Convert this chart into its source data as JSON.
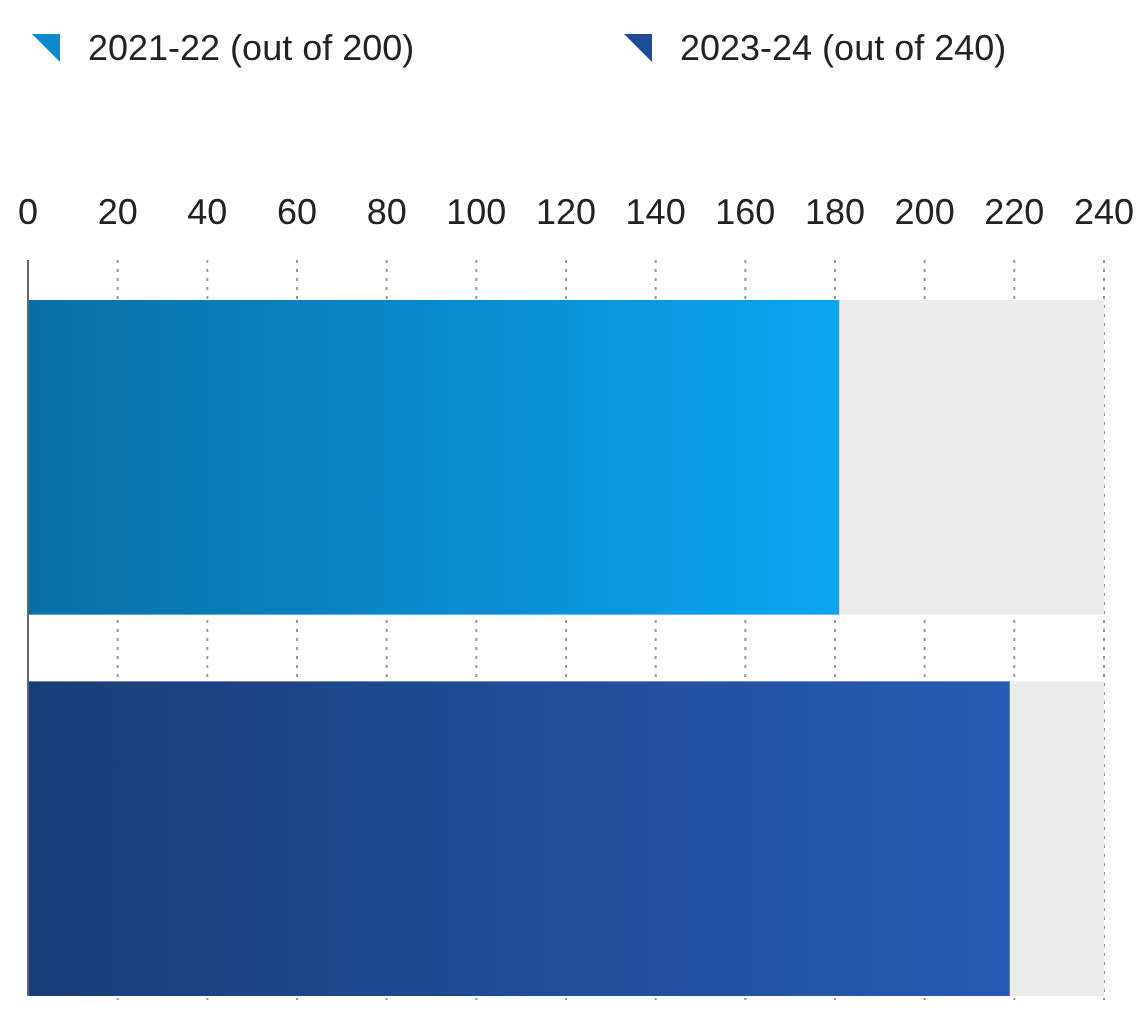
{
  "chart_data": {
    "type": "bar",
    "orientation": "horizontal",
    "stacked": true,
    "categories": [
      null,
      null
    ],
    "series": [
      {
        "name": "2021-22 (out of 200)",
        "color": "#0a8acb",
        "values": [
          181,
          null
        ]
      },
      {
        "name": "2023-24 (out of 240)",
        "color": "#1f4c96",
        "values": [
          null,
          219
        ]
      },
      {
        "color": "#ececec",
        "values": [
          59,
          21
        ]
      }
    ],
    "xlim": [
      0,
      240
    ],
    "xticks": [
      0,
      20,
      40,
      60,
      80,
      100,
      120,
      140,
      160,
      180,
      200,
      220,
      240
    ],
    "grid": "x",
    "legend": "top left"
  }
}
